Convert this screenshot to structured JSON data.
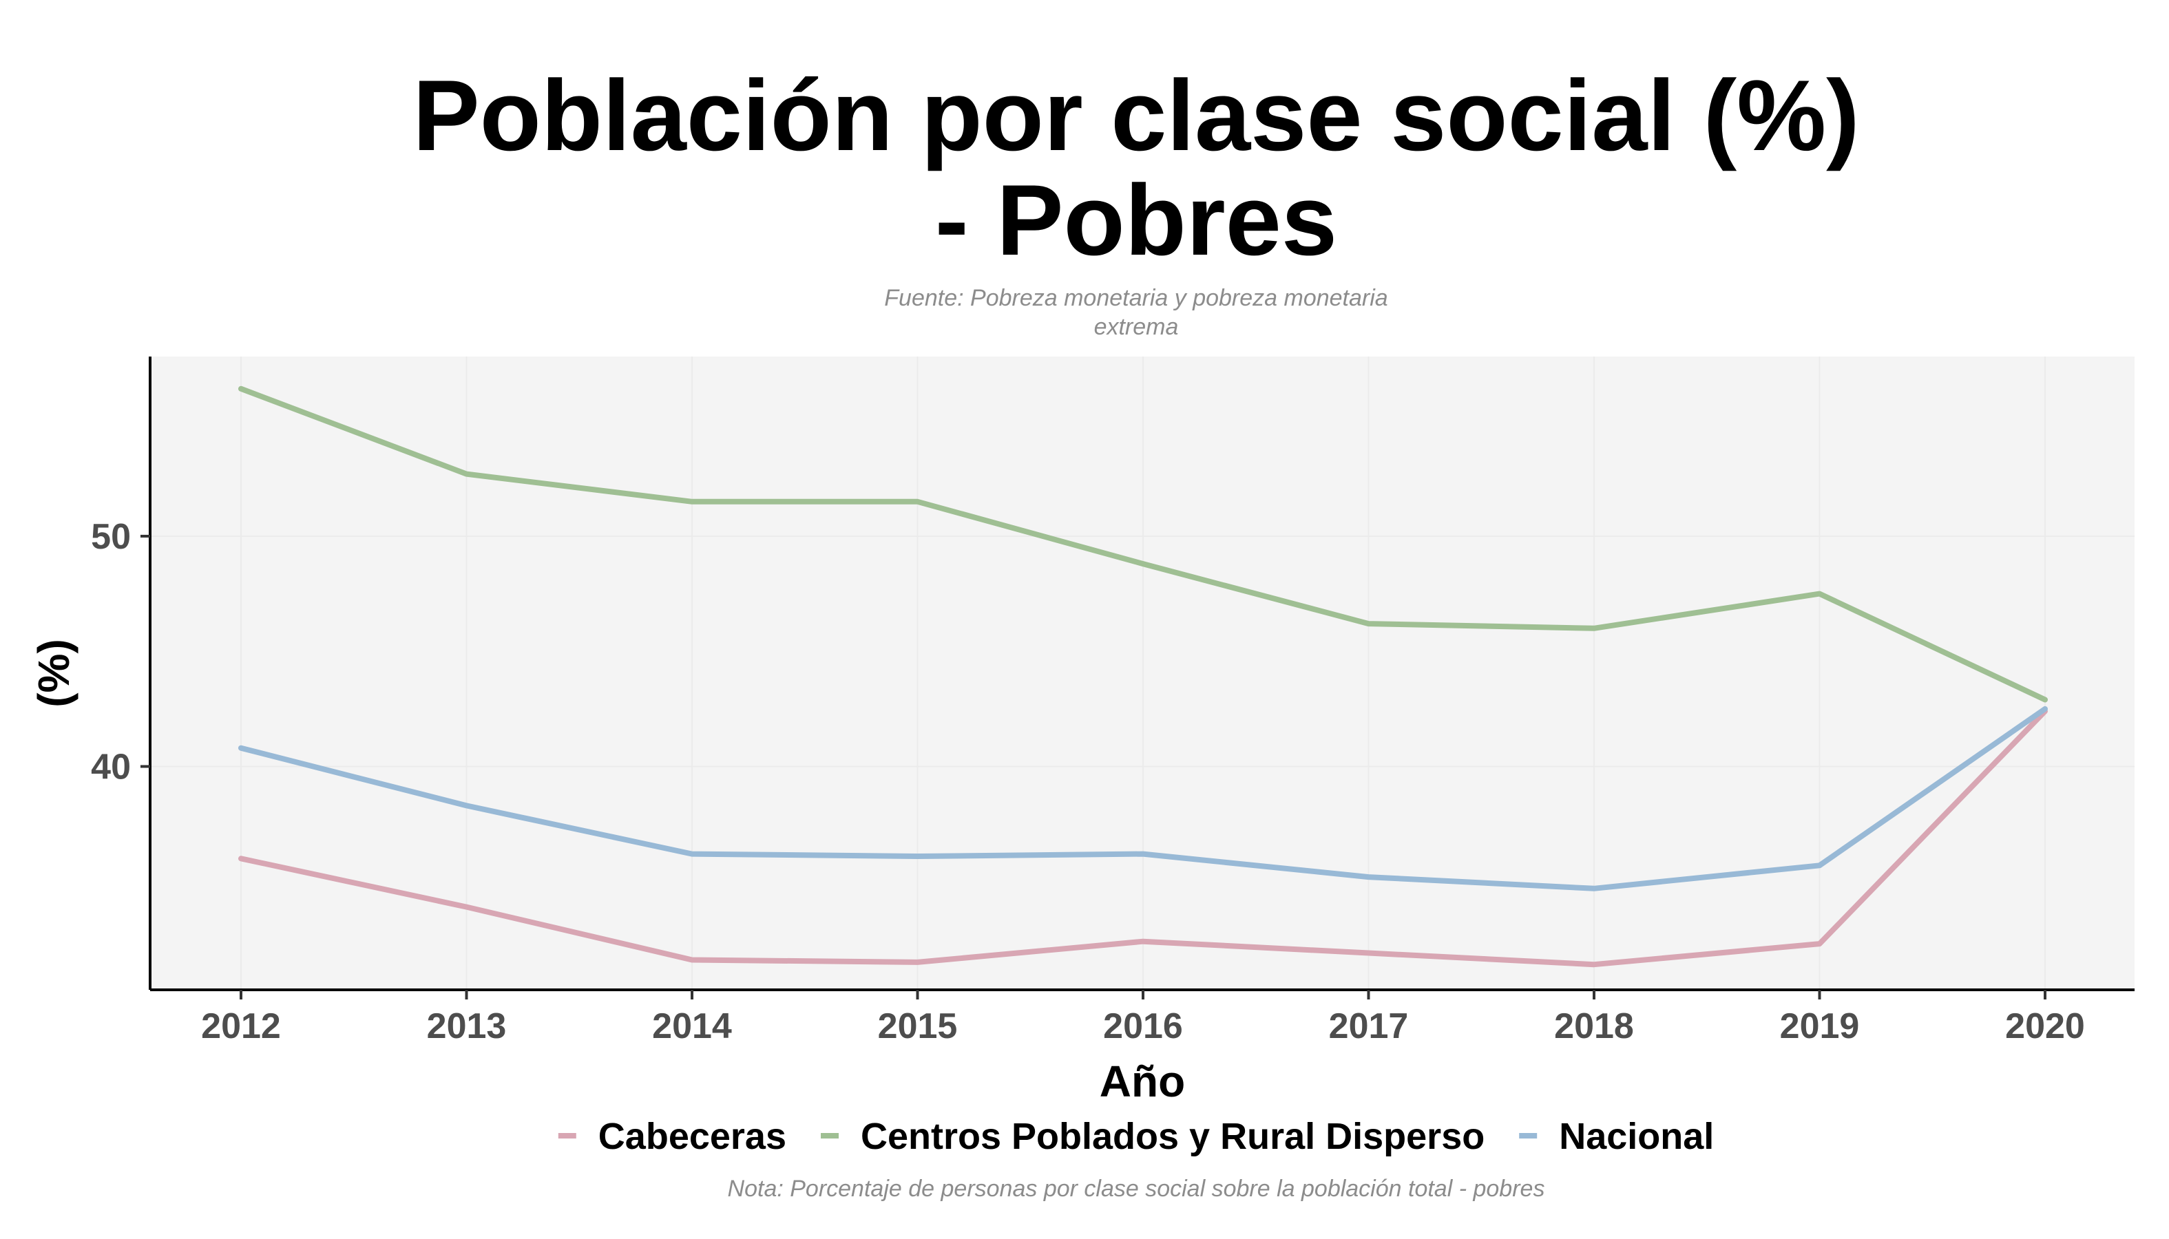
{
  "chart_data": {
    "type": "line",
    "title": [
      "Población por clase social (%)",
      "- Pobres"
    ],
    "subtitle": [
      "Fuente: Pobreza monetaria y pobreza monetaria",
      "extrema"
    ],
    "xlabel": "Año",
    "ylabel": "(%)",
    "caption": "Nota: Porcentaje de personas por clase social sobre la población total - pobres",
    "x": [
      2012,
      2013,
      2014,
      2015,
      2016,
      2017,
      2018,
      2019,
      2020
    ],
    "x_ticks": [
      "2012",
      "2013",
      "2014",
      "2015",
      "2016",
      "2017",
      "2018",
      "2019",
      "2020"
    ],
    "y_ticks": [
      40,
      50
    ],
    "ylim": [
      30.3,
      57.8
    ],
    "grid": true,
    "legend_position": "bottom",
    "series": [
      {
        "name": "Cabeceras",
        "color": "#d8a6b3",
        "values": [
          36.0,
          33.9,
          31.6,
          31.5,
          32.4,
          31.9,
          31.4,
          32.3,
          42.4
        ]
      },
      {
        "name": "Centros Poblados y Rural Disperso",
        "color": "#9fbf93",
        "values": [
          56.4,
          52.7,
          51.5,
          51.5,
          48.8,
          46.2,
          46.0,
          47.5,
          42.9
        ]
      },
      {
        "name": "Nacional",
        "color": "#98b9d6",
        "values": [
          40.8,
          38.3,
          36.2,
          36.1,
          36.2,
          35.2,
          34.7,
          35.7,
          42.5
        ]
      }
    ]
  }
}
